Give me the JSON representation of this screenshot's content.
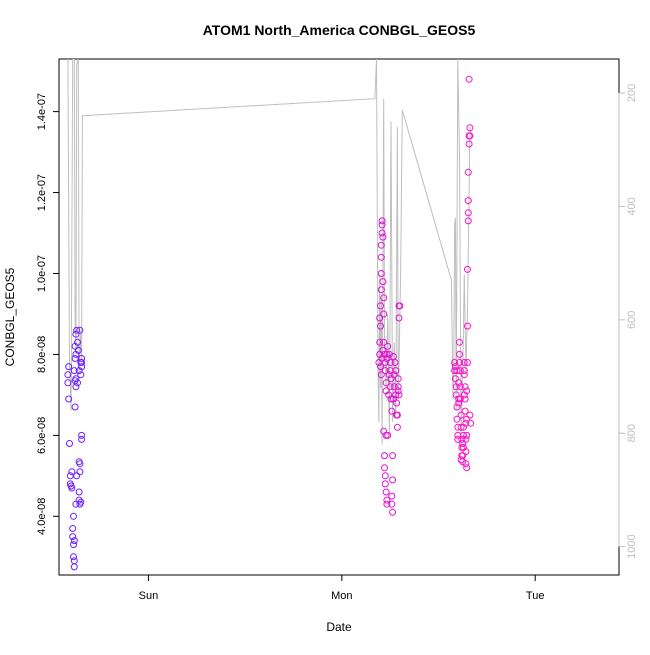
{
  "chart_data": {
    "type": "scatter",
    "title": "ATOM1 North_America CONBGL_GEOS5",
    "xlabel": "Date",
    "ylabel": "CONBGL_GEOS5",
    "x_ticks": [
      "Sun",
      "Mon",
      "Tue"
    ],
    "x_unit": "hours since Sun 00:00",
    "xlim": [
      -11.1,
      38.4
    ],
    "ylim": [
      2.55e-08,
      1.53e-07
    ],
    "y_ticks": [
      "4.0e-08",
      "6.0e-08",
      "8.0e-08",
      "1.0e-07",
      "1.2e-07",
      "1.4e-07"
    ],
    "y_tick_values": [
      4e-08,
      6e-08,
      8e-08,
      1e-07,
      1.2e-07,
      1.4e-07
    ],
    "right_axis": {
      "color": "#bebebe",
      "ticks": [
        "200",
        "400",
        "600",
        "800",
        "1000"
      ],
      "tick_values": [
        200,
        400,
        600,
        800,
        1000
      ],
      "lim": [
        1050,
        140
      ],
      "reversed": true
    },
    "grid": false,
    "point_color_range": [
      "#6a1fff",
      "#ff10c8"
    ],
    "series": [
      {
        "points": [
          [
            -10.0,
            7.3e-08
          ],
          [
            -10.0,
            7.5e-08
          ],
          [
            -9.9,
            7.7e-08
          ],
          [
            -9.9,
            6.9e-08
          ],
          [
            -9.8,
            5.8e-08
          ],
          [
            -9.7,
            5e-08
          ],
          [
            -9.7,
            4.8e-08
          ],
          [
            -9.6,
            4.75e-08
          ],
          [
            -9.5,
            4.7e-08
          ],
          [
            -9.5,
            5.1e-08
          ],
          [
            -9.4,
            3.7e-08
          ],
          [
            -9.4,
            3.5e-08
          ],
          [
            -9.3,
            3.3e-08
          ],
          [
            -9.3,
            3e-08
          ],
          [
            -9.2,
            2.75e-08
          ],
          [
            -9.2,
            2.9e-08
          ],
          [
            -9.2,
            3.4e-08
          ],
          [
            -9.3,
            4e-08
          ],
          [
            -9.0,
            4.3e-08
          ],
          [
            -9.2,
            7.6e-08
          ],
          [
            -9.1,
            7.9e-08
          ],
          [
            -9.1,
            8.2e-08
          ],
          [
            -9.0,
            8.5e-08
          ],
          [
            -9.0,
            8e-08
          ],
          [
            -9.1,
            7.35e-08
          ],
          [
            -9.0,
            7.2e-08
          ],
          [
            -9.0,
            7.4e-08
          ],
          [
            -8.9,
            8.6e-08
          ],
          [
            -8.8,
            8.3e-08
          ],
          [
            -8.7,
            8.1e-08
          ],
          [
            -9.1,
            6.7e-08
          ],
          [
            -8.9,
            5e-08
          ],
          [
            -8.6,
            5.35e-08
          ],
          [
            -8.5,
            5.3e-08
          ],
          [
            -8.6,
            4.6e-08
          ],
          [
            -8.6,
            4.4e-08
          ],
          [
            -8.5,
            4.3e-08
          ],
          [
            -8.4,
            4.35e-08
          ],
          [
            -8.5,
            5.1e-08
          ],
          [
            -8.6,
            7.6e-08
          ],
          [
            -8.4,
            7.8e-08
          ],
          [
            -8.3,
            7.9e-08
          ],
          [
            -8.3,
            7.7e-08
          ],
          [
            -8.3,
            6e-08
          ],
          [
            -8.3,
            5.9e-08
          ],
          [
            -8.8,
            7.3e-08
          ],
          [
            -8.5,
            8.6e-08
          ],
          [
            -8.4,
            7.5e-08
          ],
          [
            -8.3,
            7.8e-08
          ],
          [
            28.6,
            7.8e-08
          ],
          [
            28.7,
            8e-08
          ],
          [
            28.7,
            8.3e-08
          ],
          [
            28.8,
            8.7e-08
          ],
          [
            28.7,
            8.9e-08
          ],
          [
            28.8,
            9.2e-08
          ],
          [
            28.9,
            9.6e-08
          ],
          [
            28.9,
            1e-07
          ],
          [
            28.9,
            1.04e-07
          ],
          [
            28.9,
            1.07e-07
          ],
          [
            29.0,
            1.1e-07
          ],
          [
            29.0,
            1.12e-07
          ],
          [
            29.0,
            1.13e-07
          ],
          [
            29.1,
            1.09e-07
          ],
          [
            29.1,
            9.8e-08
          ],
          [
            29.2,
            9.4e-08
          ],
          [
            29.2,
            9e-08
          ],
          [
            28.8,
            7.7e-08
          ],
          [
            28.9,
            7.5e-08
          ],
          [
            29.0,
            7.9e-08
          ],
          [
            29.1,
            8.1e-08
          ],
          [
            29.2,
            8.3e-08
          ],
          [
            29.3,
            8e-08
          ],
          [
            29.4,
            7.8e-08
          ],
          [
            29.4,
            7.6e-08
          ],
          [
            29.5,
            7.3e-08
          ],
          [
            29.5,
            7.1e-08
          ],
          [
            29.6,
            7.9e-08
          ],
          [
            29.6,
            8e-08
          ],
          [
            29.7,
            8.2e-08
          ],
          [
            29.3,
            5.5e-08
          ],
          [
            29.3,
            5.2e-08
          ],
          [
            29.4,
            5e-08
          ],
          [
            29.4,
            4.8e-08
          ],
          [
            29.5,
            4.6e-08
          ],
          [
            29.6,
            4.4e-08
          ],
          [
            29.6,
            4.3e-08
          ],
          [
            29.2,
            6.1e-08
          ],
          [
            29.5,
            6e-08
          ],
          [
            29.8,
            7e-08
          ],
          [
            29.9,
            7.5e-08
          ],
          [
            29.9,
            8e-08
          ],
          [
            30.0,
            7.8e-08
          ],
          [
            30.0,
            7.6e-08
          ],
          [
            30.1,
            7.4e-08
          ],
          [
            30.1,
            6.9e-08
          ],
          [
            30.2,
            6.6e-08
          ],
          [
            30.2,
            4.5e-08
          ],
          [
            30.2,
            4.3e-08
          ],
          [
            30.3,
            4.1e-08
          ],
          [
            30.3,
            4.9e-08
          ],
          [
            30.3,
            5.5e-08
          ],
          [
            30.4,
            6.9e-08
          ],
          [
            30.5,
            7.2e-08
          ],
          [
            30.5,
            7.5e-08
          ],
          [
            30.6,
            7.8e-08
          ],
          [
            30.7,
            7.6e-08
          ],
          [
            30.7,
            7e-08
          ],
          [
            30.8,
            6.8e-08
          ],
          [
            30.8,
            6.5e-08
          ],
          [
            30.9,
            6.2e-08
          ],
          [
            30.9,
            6.5e-08
          ],
          [
            31.0,
            7.1e-08
          ],
          [
            31.0,
            7.4e-08
          ],
          [
            31.0,
            7.2e-08
          ],
          [
            31.1,
            7e-08
          ],
          [
            31.1,
            8.9e-08
          ],
          [
            31.1,
            9.2e-08
          ],
          [
            31.2,
            9.2e-08
          ],
          [
            30.4,
            7.95e-08
          ],
          [
            30.0,
            7.2e-08
          ],
          [
            29.7,
            6e-08
          ],
          [
            38.0,
            7.6e-08
          ],
          [
            38.0,
            7.8e-08
          ],
          [
            38.1,
            7.7e-08
          ],
          [
            38.1,
            7.4e-08
          ],
          [
            38.2,
            7.2e-08
          ],
          [
            38.2,
            7e-08
          ],
          [
            38.3,
            6.7e-08
          ],
          [
            38.3,
            6.4e-08
          ],
          [
            38.4,
            6.2e-08
          ],
          [
            38.4,
            6e-08
          ],
          [
            38.4,
            5.9e-08
          ],
          [
            38.5,
            6.9e-08
          ],
          [
            38.5,
            7.3e-08
          ],
          [
            38.6,
            7.8e-08
          ],
          [
            38.6,
            8e-08
          ],
          [
            38.6,
            8.3e-08
          ],
          [
            38.7,
            7.6e-08
          ],
          [
            38.7,
            7.2e-08
          ],
          [
            38.7,
            6.9e-08
          ],
          [
            38.8,
            6.5e-08
          ],
          [
            38.8,
            6.2e-08
          ],
          [
            38.9,
            5.9e-08
          ],
          [
            38.9,
            5.7e-08
          ],
          [
            38.9,
            5.5e-08
          ],
          [
            39.0,
            5.35e-08
          ],
          [
            39.0,
            5.5e-08
          ],
          [
            39.1,
            5.7e-08
          ],
          [
            39.1,
            6e-08
          ],
          [
            39.1,
            6.2e-08
          ],
          [
            39.2,
            7.6e-08
          ],
          [
            39.2,
            7.8e-08
          ],
          [
            39.2,
            7.5e-08
          ],
          [
            39.3,
            7.2e-08
          ],
          [
            39.3,
            6.9e-08
          ],
          [
            39.3,
            6.6e-08
          ],
          [
            39.4,
            6.3e-08
          ],
          [
            39.4,
            5.9e-08
          ],
          [
            39.4,
            5.6e-08
          ],
          [
            39.4,
            5.3e-08
          ],
          [
            39.5,
            5.2e-08
          ],
          [
            39.5,
            6e-08
          ],
          [
            39.5,
            6.4e-08
          ],
          [
            39.5,
            7.1e-08
          ],
          [
            39.6,
            7.8e-08
          ],
          [
            39.6,
            8.7e-08
          ],
          [
            39.6,
            1.01e-07
          ],
          [
            39.7,
            1.13e-07
          ],
          [
            39.7,
            1.15e-07
          ],
          [
            39.7,
            1.18e-07
          ],
          [
            39.7,
            1.25e-07
          ],
          [
            39.8,
            1.32e-07
          ],
          [
            39.8,
            1.34e-07
          ],
          [
            39.9,
            1.34e-07
          ],
          [
            39.9,
            1.36e-07
          ],
          [
            39.8,
            1.48e-07
          ],
          [
            39.9,
            6.5e-08
          ],
          [
            40.0,
            6.3e-08
          ],
          [
            38.3,
            7.6e-08
          ],
          [
            38.5,
            6.8e-08
          ],
          [
            39.0,
            5.8e-08
          ],
          [
            38.8,
            5.4e-08
          ],
          [
            39.2,
            7e-08
          ]
        ]
      }
    ],
    "line_series": {
      "axis": "right",
      "color": "#bebebe",
      "points": [
        [
          -10.0,
          140
        ],
        [
          -9.8,
          680
        ],
        [
          -9.6,
          760
        ],
        [
          -9.4,
          140
        ],
        [
          -9.2,
          140
        ],
        [
          -9.1,
          600
        ],
        [
          -9.0,
          660
        ],
        [
          -8.9,
          150
        ],
        [
          -8.7,
          140
        ],
        [
          -8.6,
          690
        ],
        [
          -8.4,
          620
        ],
        [
          -8.3,
          670
        ],
        [
          -8.2,
          240
        ],
        [
          28.1,
          210
        ],
        [
          28.3,
          140
        ],
        [
          28.5,
          700
        ],
        [
          28.6,
          780
        ],
        [
          28.7,
          520
        ],
        [
          28.8,
          720
        ],
        [
          28.9,
          560
        ],
        [
          29.0,
          820
        ],
        [
          29.1,
          500
        ],
        [
          29.2,
          210
        ],
        [
          29.3,
          640
        ],
        [
          29.5,
          720
        ],
        [
          29.7,
          590
        ],
        [
          29.9,
          800
        ],
        [
          30.1,
          250
        ],
        [
          30.3,
          780
        ],
        [
          30.5,
          640
        ],
        [
          30.7,
          770
        ],
        [
          30.9,
          260
        ],
        [
          31.0,
          740
        ],
        [
          31.1,
          680
        ],
        [
          31.3,
          520
        ],
        [
          31.5,
          230
        ],
        [
          37.6,
          530
        ],
        [
          37.8,
          740
        ],
        [
          37.9,
          680
        ],
        [
          38.0,
          430
        ],
        [
          38.1,
          420
        ],
        [
          38.2,
          760
        ],
        [
          38.4,
          140
        ],
        [
          38.6,
          310
        ],
        [
          38.8,
          800
        ],
        [
          39.0,
          700
        ],
        [
          39.2,
          520
        ],
        [
          39.4,
          690
        ],
        [
          39.6,
          580
        ],
        [
          39.8,
          380
        ],
        [
          39.9,
          260
        ],
        [
          40.0,
          270
        ]
      ]
    }
  }
}
